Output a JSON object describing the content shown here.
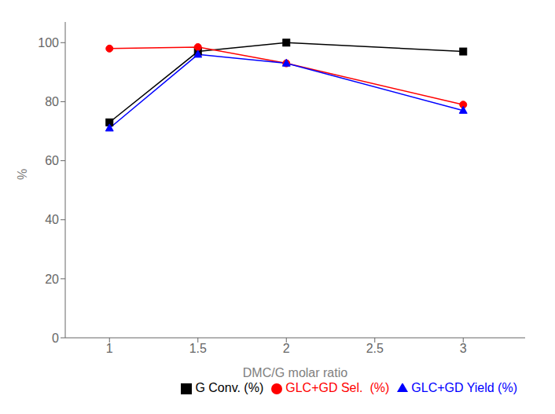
{
  "chart_data": {
    "type": "line",
    "x": [
      1.0,
      1.5,
      2.0,
      3.0
    ],
    "series": [
      {
        "name": "G Conv. (%)",
        "color": "black",
        "marker": "square",
        "values": [
          73,
          97,
          100,
          97
        ]
      },
      {
        "name": "GLC+GD Sel.  (%)",
        "color": "red",
        "marker": "circle",
        "values": [
          98,
          98.5,
          93,
          79
        ]
      },
      {
        "name": "GLC+GD Yield (%)",
        "color": "blue",
        "marker": "triangle",
        "values": [
          71,
          96,
          93,
          77
        ]
      }
    ],
    "xlabel": "DMC/G molar ratio",
    "ylabel": "%",
    "xlim": [
      0.75,
      3.35
    ],
    "ylim": [
      0,
      107
    ],
    "xticks": [
      1,
      1.5,
      2,
      2.5,
      3
    ],
    "yticks": [
      0,
      20,
      40,
      60,
      80,
      100
    ],
    "grid": false,
    "legend": "lower right"
  }
}
